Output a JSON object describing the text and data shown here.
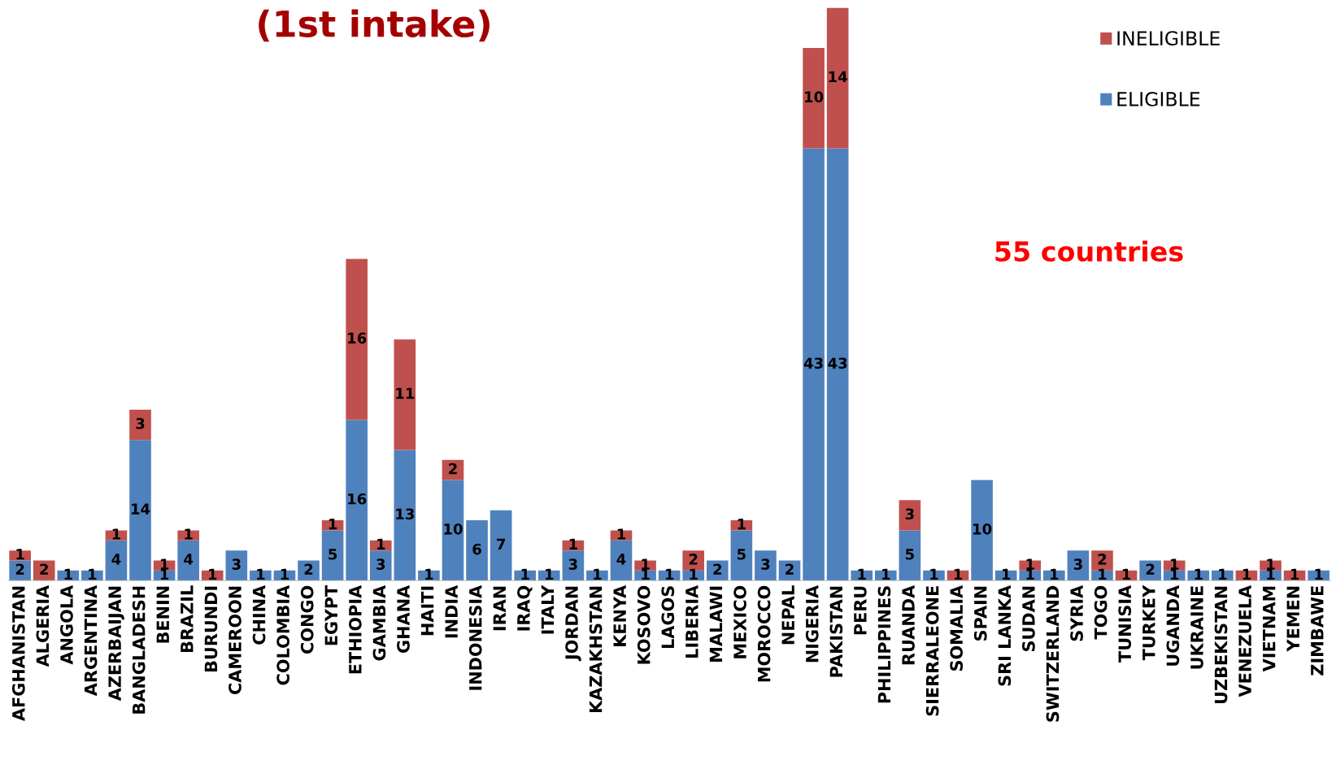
{
  "chart_data": {
    "type": "bar",
    "title": "(1st intake)",
    "stacked": true,
    "data_labels": true,
    "grid": false,
    "legend": "top right",
    "annotations": [
      "55 countries"
    ],
    "categories": [
      "AFGHANISTAN",
      "ALGERIA",
      "ANGOLA",
      "ARGENTINA",
      "AZERBAIJAN",
      "BANGLADESH",
      "BENIN",
      "BRAZIL",
      "BURUNDI",
      "CAMEROON",
      "CHINA",
      "COLOMBIA",
      "CONGO",
      "EGYPT",
      "ETHIOPIA",
      "GAMBIA",
      "GHANA",
      "HAITI",
      "INDIA",
      "INDONESIA",
      "IRAN",
      "IRAQ",
      "ITALY",
      "JORDAN",
      "KAZAKHSTAN",
      "KENYA",
      "KOSOVO",
      "LAGOS",
      "LIBERIA",
      "MALAWI",
      "MEXICO",
      "MOROCCO",
      "NEPAL",
      "NIGERIA",
      "PAKISTAN",
      "PERU",
      "PHILIPPINES",
      "RUANDA",
      "SIERRALEONE",
      "SOMALIA",
      "SPAIN",
      "SRI LANKA",
      "SUDAN",
      "SWITZERLAND",
      "SYRIA",
      "TOGO",
      "TUNISIA",
      "TURKEY",
      "UGANDA",
      "UKRAINE",
      "UZBEKISTAN",
      "VENEZUELA",
      "VIETNAM",
      "YEMEN",
      "ZIMBAWE"
    ],
    "series": [
      {
        "name": "ELIGIBLE",
        "color": "#4f81bd",
        "values": [
          2,
          null,
          1,
          1,
          4,
          14,
          1,
          4,
          null,
          3,
          1,
          1,
          2,
          5,
          16,
          3,
          13,
          1,
          10,
          6,
          7,
          1,
          1,
          3,
          1,
          4,
          1,
          1,
          1,
          2,
          5,
          3,
          2,
          43,
          43,
          1,
          1,
          5,
          1,
          null,
          10,
          1,
          1,
          1,
          3,
          1,
          null,
          2,
          1,
          1,
          1,
          null,
          1,
          null,
          1
        ]
      },
      {
        "name": "INELIGIBLE",
        "color": "#c0504d",
        "values": [
          1,
          2,
          null,
          null,
          1,
          3,
          1,
          1,
          1,
          null,
          null,
          null,
          null,
          1,
          16,
          1,
          11,
          null,
          2,
          null,
          null,
          null,
          null,
          1,
          null,
          1,
          1,
          null,
          2,
          null,
          1,
          null,
          null,
          10,
          14,
          null,
          null,
          3,
          null,
          1,
          null,
          null,
          1,
          null,
          null,
          2,
          1,
          null,
          1,
          null,
          null,
          1,
          1,
          1,
          null
        ]
      }
    ]
  }
}
